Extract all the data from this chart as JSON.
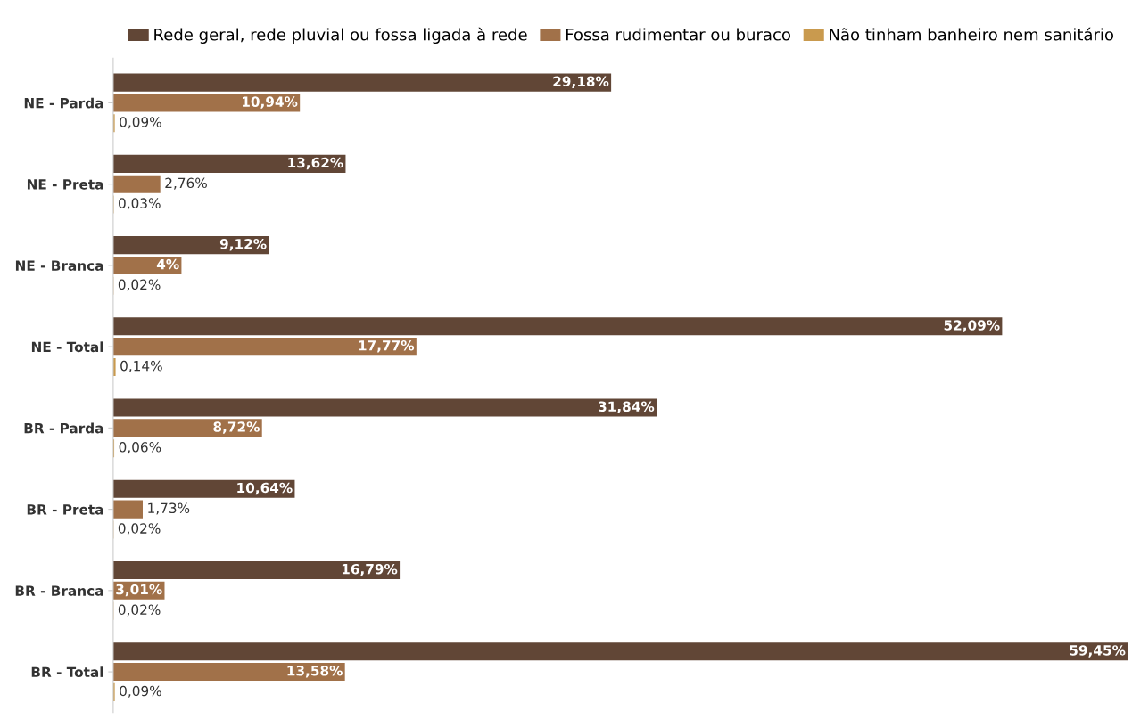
{
  "chart_data": {
    "type": "bar",
    "orientation": "horizontal",
    "tick_labels": "y",
    "legend": "top",
    "grid": false,
    "categories": [
      "NE - Parda",
      "NE - Preta",
      "NE - Branca",
      "NE - Total",
      "BR - Parda",
      "BR - Preta",
      "BR - Branca",
      "BR - Total"
    ],
    "series": [
      {
        "name": "Rede geral, rede pluvial ou fossa ligada à rede",
        "color": "#614636",
        "values": [
          29.18,
          13.62,
          9.12,
          52.09,
          31.84,
          10.64,
          16.79,
          59.45
        ],
        "value_labels": [
          "29,18%",
          "13,62%",
          "9,12%",
          "52,09%",
          "31,84%",
          "10,64%",
          "16,79%",
          "59,45%"
        ]
      },
      {
        "name": "Fossa rudimentar ou buraco",
        "color": "#a17149",
        "values": [
          10.94,
          2.76,
          4,
          17.77,
          8.72,
          1.73,
          3.01,
          13.58
        ],
        "value_labels": [
          "10,94%",
          "2,76%",
          "4%",
          "17,77%",
          "8,72%",
          "1,73%",
          "3,01%",
          "13,58%"
        ]
      },
      {
        "name": "Não tinham banheiro nem sanitário",
        "color": "#c99a4e",
        "values": [
          0.09,
          0.03,
          0.02,
          0.14,
          0.06,
          0.02,
          0.02,
          0.09
        ],
        "value_labels": [
          "0,09%",
          "0,03%",
          "0,02%",
          "0,14%",
          "0,06%",
          "0,02%",
          "0,02%",
          "0,09%"
        ]
      }
    ]
  }
}
